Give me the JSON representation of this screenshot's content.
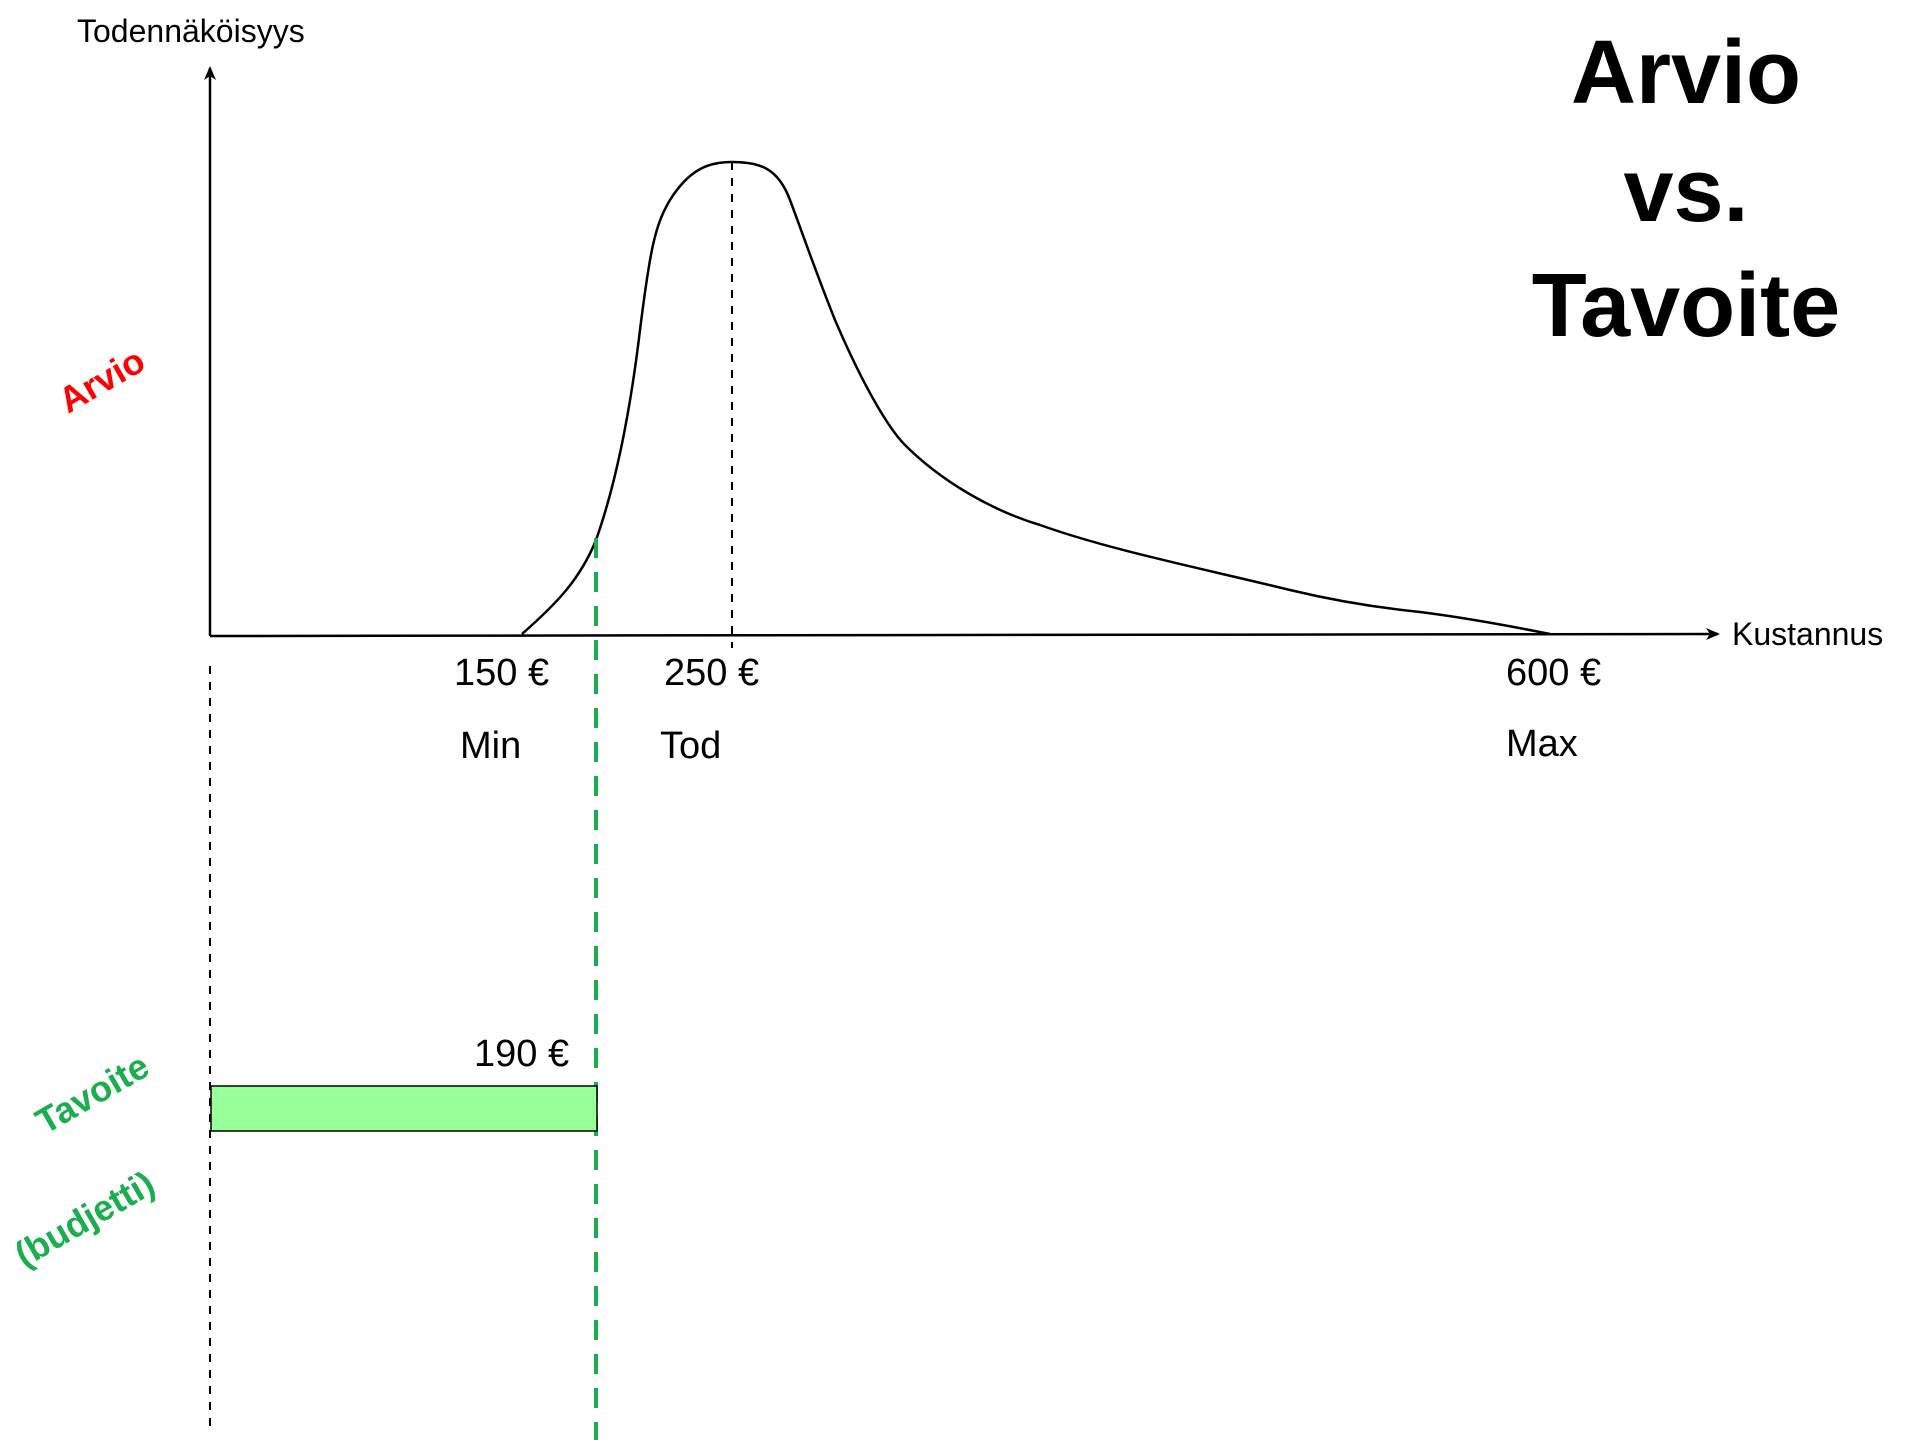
{
  "title": {
    "line1": "Arvio",
    "line2": "vs.",
    "line3": "Tavoite"
  },
  "axes": {
    "y_label": "Todennäköisyys",
    "x_label": "Kustannus"
  },
  "estimate": {
    "label": "Arvio",
    "label_color": "#ff0000",
    "min_value": "150 €",
    "min_label": "Min",
    "likely_value": "250 €",
    "likely_label": "Tod",
    "max_value": "600 €",
    "max_label": "Max"
  },
  "target": {
    "label_line1": "Tavoite",
    "label_line2": "(budjetti)",
    "label_color": "#1aae4f",
    "value": "190 €",
    "bar_color": "#99ff99",
    "line_color": "#1aae4f"
  }
}
